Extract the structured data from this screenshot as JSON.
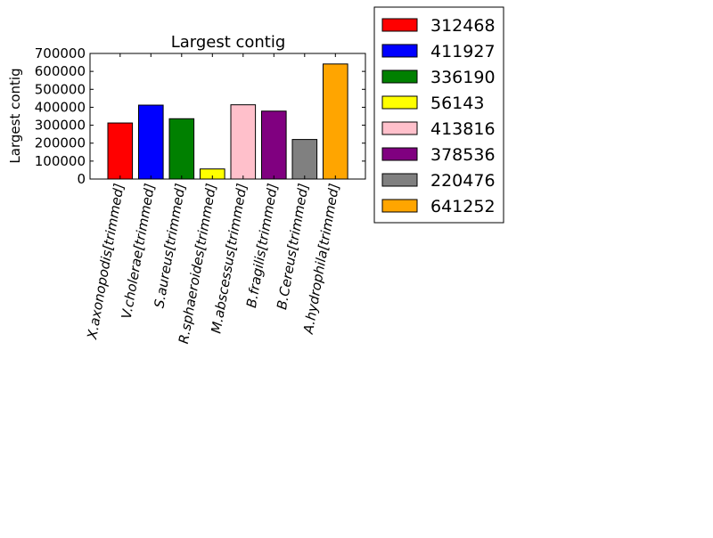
{
  "chart_data": {
    "type": "bar",
    "title": "Largest contig",
    "xlabel": "",
    "ylabel": "Largest contig",
    "ylim": [
      0,
      700000
    ],
    "yticks": [
      0,
      100000,
      200000,
      300000,
      400000,
      500000,
      600000,
      700000
    ],
    "ytick_labels": [
      "0",
      "100000",
      "200000",
      "300000",
      "400000",
      "500000",
      "600000",
      "700000"
    ],
    "categories": [
      "X.axonopodis[trimmed]",
      "V.cholerae[trimmed]",
      "S.aureus[trimmed]",
      "R.sphaeroides[trimmed]",
      "M.abscessus[trimmed]",
      "B.fragilis[trimmed]",
      "B.Cereus[trimmed]",
      "A.hydrophila[trimmed]"
    ],
    "values": [
      312468,
      411927,
      336190,
      56143,
      413816,
      378536,
      220476,
      641252
    ],
    "colors": [
      "#ff0000",
      "#0000ff",
      "#008000",
      "#ffff00",
      "#ffc0cb",
      "#800080",
      "#808080",
      "#ffa500"
    ],
    "legend": {
      "placement": "outside-right-top",
      "entries": [
        "312468",
        "411927",
        "336190",
        "56143",
        "413816",
        "378536",
        "220476",
        "641252"
      ]
    },
    "grid": false
  }
}
